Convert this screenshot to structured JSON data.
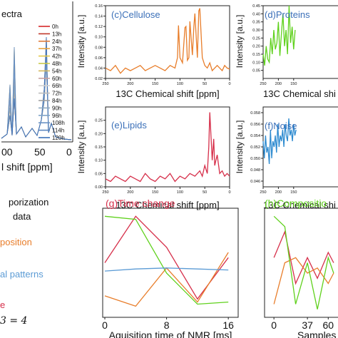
{
  "chart_data": [
    {
      "id": "a",
      "type": "line",
      "title": "ectra",
      "xlabel": "l shift [ppm]",
      "xticks": [
        "00",
        "50",
        "0"
      ],
      "legend": {
        "placement": "right",
        "entries": [
          "0h",
          "13h",
          "24h",
          "37h",
          "42h",
          "48h",
          "54h",
          "60h",
          "66h",
          "72h",
          "84h",
          "90h",
          "96h",
          "108h",
          "114h",
          "120h"
        ],
        "colors": [
          "#d62728",
          "#c0392b",
          "#e07b39",
          "#e8a33d",
          "#e5c94a",
          "#c9c94a",
          "#d4b85c",
          "#c8a0a0",
          "#d0d0d0",
          "#bdbdbd",
          "#a0a0a0",
          "#8fa9c0",
          "#7fa3c8",
          "#6b93c4",
          "#5a86c0",
          "#3a6fb8"
        ]
      }
    },
    {
      "id": "c",
      "type": "line",
      "title": "(c)Cellulose",
      "color": "#e87d2a",
      "xlabel": "13C Chemical shift [ppm]",
      "ylabel": "Intensity [a.u.]",
      "xlim": [
        250,
        0
      ],
      "xticks": [
        250,
        200,
        150,
        100,
        50,
        0
      ],
      "ylim": [
        0.02,
        0.16
      ],
      "yticks": [
        0.02,
        0.04,
        0.06,
        0.08,
        0.1,
        0.12,
        0.14,
        0.16
      ],
      "x": [
        250,
        240,
        230,
        220,
        210,
        200,
        190,
        180,
        170,
        160,
        150,
        140,
        130,
        120,
        110,
        105,
        103,
        100,
        95,
        90,
        88,
        85,
        82,
        80,
        75,
        72,
        70,
        65,
        62,
        60,
        55,
        50,
        45,
        40,
        35,
        30,
        25,
        20,
        15,
        10,
        5,
        0
      ],
      "values": [
        0.04,
        0.035,
        0.045,
        0.03,
        0.04,
        0.035,
        0.04,
        0.045,
        0.035,
        0.04,
        0.045,
        0.04,
        0.035,
        0.045,
        0.04,
        0.06,
        0.122,
        0.06,
        0.05,
        0.118,
        0.12,
        0.055,
        0.06,
        0.13,
        0.065,
        0.12,
        0.145,
        0.06,
        0.15,
        0.155,
        0.06,
        0.045,
        0.04,
        0.05,
        0.035,
        0.04,
        0.045,
        0.04,
        0.035,
        0.045,
        0.04,
        0.038
      ]
    },
    {
      "id": "d",
      "type": "line",
      "title": "(d)Proteins",
      "color": "#5fd11c",
      "xlabel": "13C Chemical shi",
      "ylabel": "Intensity [a.u.]",
      "xlim": [
        250,
        0
      ],
      "xticks": [
        250,
        200,
        150
      ],
      "ylim": [
        0.0,
        0.45
      ],
      "yticks": [
        0.05,
        0.1,
        0.15,
        0.2,
        0.25,
        0.3,
        0.35,
        0.4,
        0.45
      ],
      "x": [
        250,
        245,
        240,
        235,
        230,
        225,
        220,
        215,
        210,
        205,
        200,
        195,
        190,
        185,
        180,
        175,
        170,
        165,
        160,
        155,
        150,
        145
      ],
      "values": [
        0.15,
        0.08,
        0.2,
        0.12,
        0.1,
        0.25,
        0.15,
        0.3,
        0.18,
        0.22,
        0.35,
        0.14,
        0.28,
        0.4,
        0.2,
        0.3,
        0.15,
        0.45,
        0.22,
        0.32,
        0.18,
        0.3
      ]
    },
    {
      "id": "e",
      "type": "line",
      "title": "(e)Lipids",
      "color": "#d62f4a",
      "xlabel": "13C Chemical shift [ppm]",
      "ylabel": "Intensity [a.u.]",
      "xlim": [
        250,
        0
      ],
      "xticks": [
        250,
        200,
        150,
        100,
        50,
        0
      ],
      "ylim": [
        0.0,
        0.3
      ],
      "yticks": [
        0.0,
        0.05,
        0.1,
        0.15,
        0.2,
        0.25
      ],
      "x": [
        250,
        240,
        230,
        220,
        210,
        200,
        190,
        180,
        170,
        160,
        150,
        140,
        130,
        120,
        110,
        100,
        90,
        80,
        70,
        60,
        55,
        50,
        45,
        42,
        40,
        35,
        32,
        30,
        25,
        20,
        15,
        10,
        5,
        0
      ],
      "values": [
        0.03,
        0.02,
        0.04,
        0.03,
        0.02,
        0.04,
        0.03,
        0.02,
        0.05,
        0.03,
        0.02,
        0.04,
        0.03,
        0.05,
        0.02,
        0.04,
        0.03,
        0.05,
        0.04,
        0.06,
        0.04,
        0.08,
        0.05,
        0.15,
        0.28,
        0.1,
        0.18,
        0.08,
        0.12,
        0.05,
        0.06,
        0.04,
        0.05,
        0.04
      ]
    },
    {
      "id": "f",
      "type": "line",
      "title": "(f)Noise",
      "color": "#2e8bd0",
      "xlabel": "13C Chemical shi",
      "ylabel": "Intensity [a.u.]",
      "xlim": [
        250,
        0
      ],
      "xticks": [
        250,
        200,
        150
      ],
      "ylim": [
        0.045,
        0.059
      ],
      "yticks": [
        0.046,
        0.048,
        0.05,
        0.052,
        0.054,
        0.056,
        0.058
      ],
      "x": [
        250,
        246,
        242,
        238,
        234,
        230,
        226,
        222,
        218,
        214,
        210,
        206,
        202,
        198,
        194,
        190,
        186,
        182,
        178,
        174,
        170,
        166,
        162,
        158,
        154,
        150,
        146,
        142
      ],
      "values": [
        0.053,
        0.05,
        0.054,
        0.051,
        0.052,
        0.049,
        0.055,
        0.05,
        0.053,
        0.052,
        0.054,
        0.051,
        0.056,
        0.052,
        0.054,
        0.053,
        0.055,
        0.052,
        0.056,
        0.054,
        0.053,
        0.057,
        0.054,
        0.055,
        0.053,
        0.056,
        0.054,
        0.055
      ]
    },
    {
      "id": "g",
      "type": "line",
      "title": "(g)Time change",
      "xlabel": "Aquisition time of NMR [ms]",
      "xlim": [
        0,
        17
      ],
      "xticks": [
        0,
        8,
        16
      ],
      "ylim": [
        0,
        1
      ],
      "series": [
        {
          "color": "#d62f4a",
          "x": [
            0,
            4,
            8,
            12,
            16
          ],
          "values": [
            0.5,
            0.95,
            0.65,
            0.15,
            0.55
          ]
        },
        {
          "color": "#e87d2a",
          "x": [
            0,
            4,
            8,
            12,
            16
          ],
          "values": [
            0.18,
            0.08,
            0.45,
            0.12,
            0.6
          ]
        },
        {
          "color": "#5fd11c",
          "x": [
            0,
            4,
            8,
            12,
            16
          ],
          "values": [
            0.95,
            0.92,
            0.4,
            0.1,
            0.12
          ]
        },
        {
          "color": "#5b9bd5",
          "x": [
            0,
            4,
            8,
            12,
            16
          ],
          "values": [
            0.42,
            0.44,
            0.45,
            0.44,
            0.43
          ]
        }
      ]
    },
    {
      "id": "h",
      "type": "line",
      "title": "(h)Compositio",
      "xlabel": "Samples",
      "xticks": [
        0,
        37,
        60
      ],
      "series": [
        {
          "color": "#d62f4a",
          "x": [
            0,
            12,
            24,
            37,
            48,
            60,
            66
          ],
          "values": [
            0.55,
            0.8,
            0.3,
            0.55,
            0.35,
            0.6,
            0.5
          ]
        },
        {
          "color": "#e87d2a",
          "x": [
            0,
            12,
            24,
            37,
            48,
            60,
            66
          ],
          "values": [
            0.1,
            0.5,
            0.55,
            0.4,
            0.45,
            0.3,
            0.4
          ]
        },
        {
          "color": "#5fd11c",
          "x": [
            0,
            12,
            24,
            37,
            48,
            60,
            66
          ],
          "values": [
            0.95,
            0.85,
            0.1,
            0.5,
            0.05,
            0.55,
            0.4
          ]
        }
      ]
    }
  ],
  "text_fragments": {
    "left1": "porization",
    "left2": "data",
    "left3": "position",
    "left4": "al patterns",
    "left5": "e",
    "left6": "3 = 4"
  }
}
